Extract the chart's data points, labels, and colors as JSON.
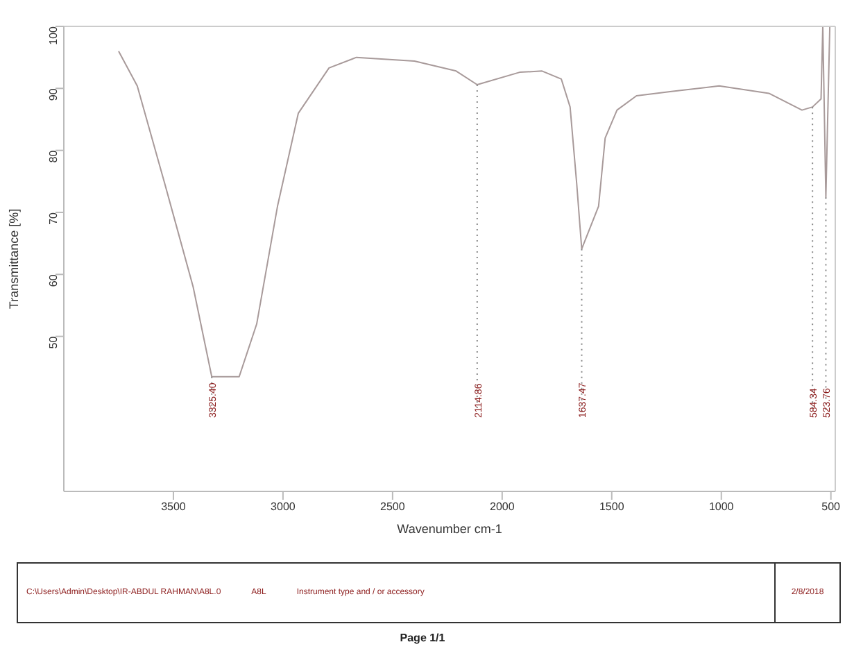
{
  "chart_data": {
    "type": "line",
    "xlabel": "Wavenumber cm-1",
    "ylabel": "Transmittance [%]",
    "x": [
      3750,
      3665,
      3540,
      3410,
      3325,
      3200,
      3120,
      3025,
      2930,
      2790,
      2665,
      2400,
      2210,
      2114,
      1920,
      1818,
      1730,
      1690,
      1660,
      1637,
      1560,
      1530,
      1476,
      1387,
      1227,
      1010,
      783,
      632,
      584,
      545,
      537,
      523,
      505
    ],
    "series": [
      {
        "color": "#a89a9a",
        "values": [
          96,
          90.4,
          74.7,
          58,
          43.5,
          43.5,
          52,
          71,
          86,
          93.3,
          95,
          94.4,
          92.8,
          90.6,
          92.6,
          92.8,
          91.5,
          87,
          74.7,
          64.1,
          71,
          82,
          86.5,
          88.8,
          89.5,
          90.4,
          89.2,
          86.5,
          87,
          88.3,
          100,
          72.4,
          100
        ]
      }
    ],
    "xlim": [
      4000,
      480
    ],
    "xticks": [
      3500,
      3000,
      2500,
      2000,
      1500,
      1000,
      500
    ],
    "ylim": [
      25,
      100
    ],
    "yticks": [
      50,
      60,
      70,
      80,
      90,
      100
    ],
    "grid": false,
    "legend": false,
    "marker": "none",
    "line_style": "solid",
    "annotations": [
      {
        "text": "3325.40",
        "x": 3325,
        "y": 43.5
      },
      {
        "text": "2114.86",
        "x": 2114,
        "y": 90.6
      },
      {
        "text": "1637.47",
        "x": 1637,
        "y": 64.1
      },
      {
        "text": "584.34",
        "x": 584,
        "y": 87
      },
      {
        "text": "523.76",
        "x": 523,
        "y": 72.4
      },
      "C:\\Users\\Admin\\Desktop\\IR-ABDUL RAHMAN\\A8L.0",
      "A8L",
      "Instrument type and / or accessory",
      "2/8/2018",
      "Page 1/1"
    ]
  }
}
